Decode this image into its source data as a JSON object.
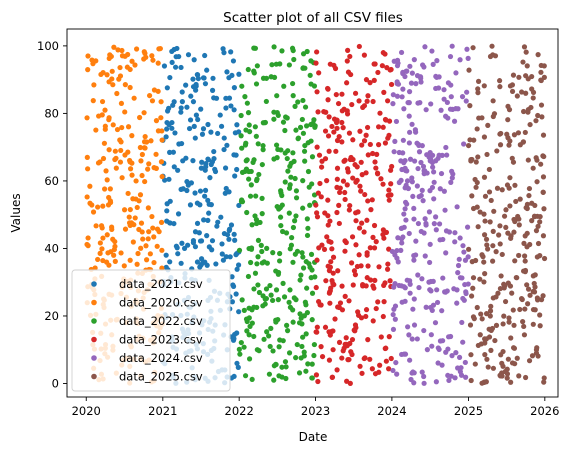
{
  "chart_data": {
    "type": "scatter",
    "title": "Scatter plot of all CSV files",
    "xlabel": "Date",
    "ylabel": "Values",
    "x_axis": "date",
    "xlim": [
      "2019-10-01",
      "2026-03-05"
    ],
    "ylim": [
      -4,
      105
    ],
    "x_ticks": [
      "2020",
      "2021",
      "2022",
      "2023",
      "2024",
      "2025",
      "2026"
    ],
    "y_ticks": [
      0,
      20,
      40,
      60,
      80,
      100
    ],
    "grid": false,
    "legend_position": "lower-left",
    "points_per_series": 300,
    "series": [
      {
        "name": "data_2021.csv",
        "color": "#1f77b4",
        "x_range": [
          "2021-01-01",
          "2021-12-31"
        ],
        "y_range": [
          0,
          100
        ]
      },
      {
        "name": "data_2020.csv",
        "color": "#ff7f0e",
        "x_range": [
          "2020-01-01",
          "2020-12-31"
        ],
        "y_range": [
          0,
          100
        ]
      },
      {
        "name": "data_2022.csv",
        "color": "#2ca02c",
        "x_range": [
          "2022-01-01",
          "2022-12-31"
        ],
        "y_range": [
          0,
          100
        ]
      },
      {
        "name": "data_2023.csv",
        "color": "#d62728",
        "x_range": [
          "2023-01-01",
          "2023-12-31"
        ],
        "y_range": [
          0,
          100
        ]
      },
      {
        "name": "data_2024.csv",
        "color": "#9467bd",
        "x_range": [
          "2024-01-01",
          "2024-12-31"
        ],
        "y_range": [
          0,
          100
        ]
      },
      {
        "name": "data_2025.csv",
        "color": "#8c564b",
        "x_range": [
          "2025-01-01",
          "2025-12-31"
        ],
        "y_range": [
          0,
          100
        ]
      }
    ]
  }
}
